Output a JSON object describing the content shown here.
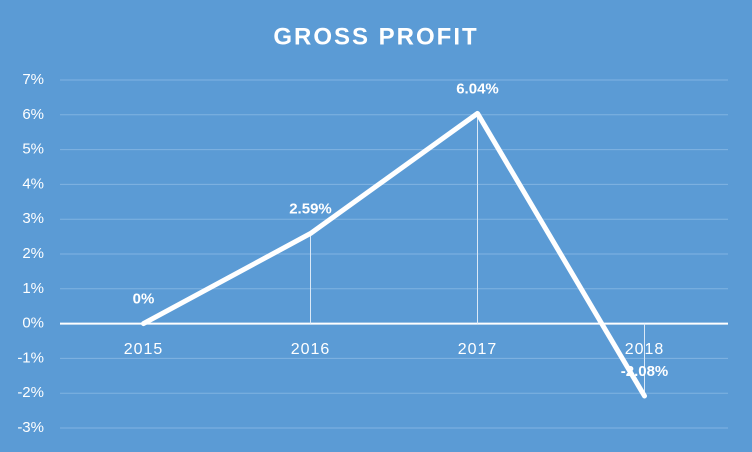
{
  "chart_data": {
    "type": "line",
    "title": "GROSS PROFIT",
    "categories": [
      "2015",
      "2016",
      "2017",
      "2018"
    ],
    "values": [
      0,
      2.59,
      6.04,
      -2.08
    ],
    "value_labels": [
      "0%",
      "2.59%",
      "6.04%",
      "-2.08%"
    ],
    "color": "#ffffff",
    "ylim": [
      -3,
      7
    ],
    "yticks": [
      {
        "value": -3,
        "label": "-3%"
      },
      {
        "value": -2,
        "label": "-2%"
      },
      {
        "value": -1,
        "label": "-1%"
      },
      {
        "value": 0,
        "label": "0%"
      },
      {
        "value": 1,
        "label": "1%"
      },
      {
        "value": 2,
        "label": "2%"
      },
      {
        "value": 3,
        "label": "3%"
      },
      {
        "value": 4,
        "label": "4%"
      },
      {
        "value": 5,
        "label": "5%"
      },
      {
        "value": 6,
        "label": "6%"
      },
      {
        "value": 7,
        "label": "7%"
      }
    ],
    "grid": true
  }
}
